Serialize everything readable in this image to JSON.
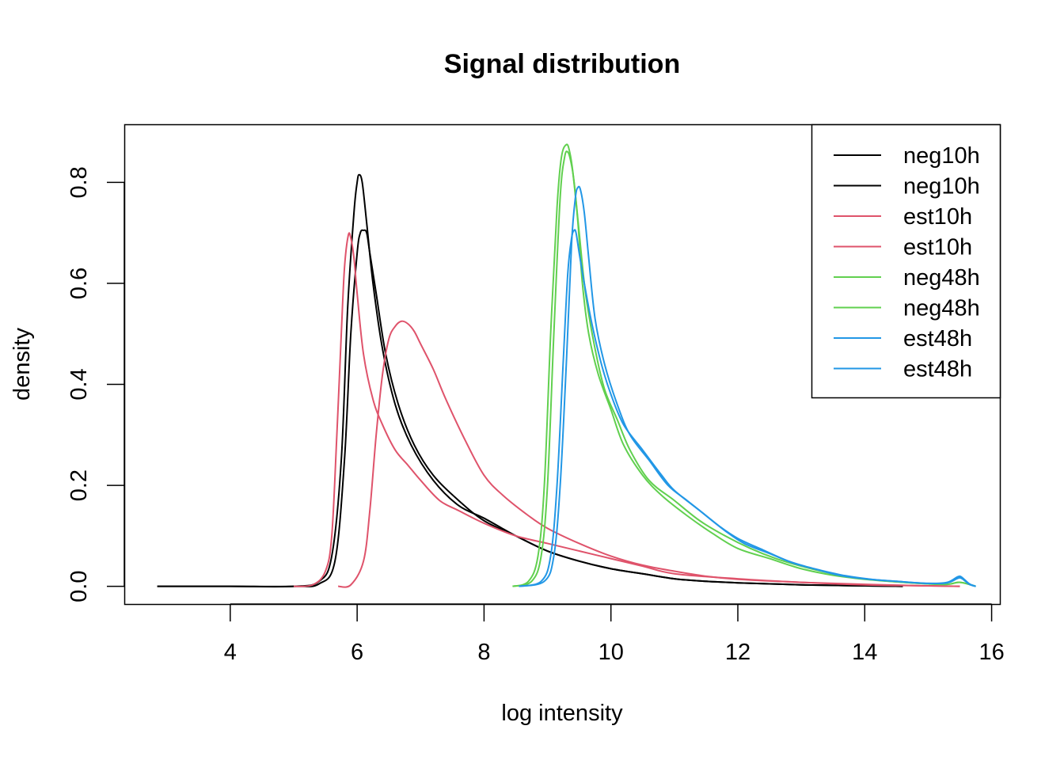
{
  "chart_data": {
    "type": "line",
    "title": "Signal distribution",
    "xlabel": "log intensity",
    "ylabel": "density",
    "xlim": [
      2.33,
      16.13
    ],
    "ylim": [
      -0.035,
      0.915
    ],
    "xticks": [
      4,
      6,
      8,
      10,
      12,
      14,
      16
    ],
    "yticks": [
      0.0,
      0.2,
      0.4,
      0.6,
      0.8
    ],
    "grid": false,
    "legend_position": "top-right",
    "colors": {
      "black": "#000000",
      "red": "#DF536B",
      "green": "#61D04F",
      "blue": "#2297E6"
    },
    "series": [
      {
        "name": "neg10h",
        "color": "#000000",
        "x": [
          2.85,
          4.0,
          5.0,
          5.4,
          5.6,
          5.75,
          5.85,
          5.95,
          6.0,
          6.03,
          6.08,
          6.15,
          6.25,
          6.4,
          6.6,
          6.85,
          7.2,
          7.6,
          8.0,
          8.5,
          9.0,
          9.5,
          10.0,
          10.5,
          11.0,
          11.5,
          12.0,
          12.5,
          13.0,
          13.5,
          14.0,
          14.6
        ],
        "y": [
          0.0,
          0.0,
          0.0,
          0.01,
          0.06,
          0.25,
          0.55,
          0.74,
          0.8,
          0.815,
          0.8,
          0.72,
          0.6,
          0.47,
          0.36,
          0.28,
          0.21,
          0.16,
          0.135,
          0.1,
          0.07,
          0.05,
          0.035,
          0.025,
          0.015,
          0.01,
          0.007,
          0.005,
          0.003,
          0.002,
          0.001,
          0.0
        ]
      },
      {
        "name": "neg10h",
        "color": "#000000",
        "x": [
          2.85,
          4.0,
          5.0,
          5.4,
          5.65,
          5.8,
          5.9,
          6.0,
          6.05,
          6.1,
          6.15,
          6.2,
          6.3,
          6.45,
          6.65,
          6.9,
          7.2,
          7.6,
          8.0,
          8.5,
          9.0,
          9.5,
          10.0,
          10.5,
          11.0,
          11.5,
          12.0,
          12.5,
          13.0,
          13.5,
          14.0,
          14.6
        ],
        "y": [
          0.0,
          0.0,
          0.0,
          0.005,
          0.05,
          0.25,
          0.5,
          0.66,
          0.7,
          0.705,
          0.7,
          0.66,
          0.58,
          0.46,
          0.36,
          0.28,
          0.22,
          0.17,
          0.13,
          0.1,
          0.07,
          0.05,
          0.035,
          0.025,
          0.015,
          0.01,
          0.007,
          0.005,
          0.003,
          0.002,
          0.001,
          0.0
        ]
      },
      {
        "name": "est10h",
        "color": "#DF536B",
        "x": [
          5.0,
          5.3,
          5.5,
          5.6,
          5.68,
          5.75,
          5.8,
          5.86,
          5.9,
          5.95,
          6.0,
          6.1,
          6.25,
          6.4,
          6.6,
          6.8,
          7.0,
          7.3,
          7.6,
          8.0,
          8.5,
          9.0,
          9.5,
          10.0,
          10.5,
          11.0,
          12.0,
          13.0,
          14.0,
          15.0,
          15.5
        ],
        "y": [
          0.0,
          0.003,
          0.03,
          0.1,
          0.3,
          0.5,
          0.63,
          0.695,
          0.69,
          0.65,
          0.58,
          0.46,
          0.37,
          0.32,
          0.27,
          0.24,
          0.21,
          0.17,
          0.15,
          0.125,
          0.1,
          0.085,
          0.07,
          0.055,
          0.04,
          0.025,
          0.015,
          0.008,
          0.003,
          0.001,
          0.0
        ]
      },
      {
        "name": "est10h",
        "color": "#DF536B",
        "x": [
          5.7,
          5.9,
          6.1,
          6.2,
          6.3,
          6.4,
          6.5,
          6.6,
          6.7,
          6.8,
          6.9,
          7.0,
          7.2,
          7.4,
          7.7,
          8.0,
          8.3,
          8.7,
          9.0,
          9.5,
          10.0,
          10.5,
          11.0,
          11.5,
          12.0,
          13.0,
          14.0,
          15.0,
          15.5
        ],
        "y": [
          0.0,
          0.003,
          0.05,
          0.15,
          0.3,
          0.42,
          0.49,
          0.515,
          0.525,
          0.52,
          0.505,
          0.48,
          0.43,
          0.37,
          0.29,
          0.22,
          0.18,
          0.14,
          0.115,
          0.085,
          0.06,
          0.042,
          0.03,
          0.02,
          0.014,
          0.008,
          0.004,
          0.001,
          0.0
        ]
      },
      {
        "name": "neg48h",
        "color": "#61D04F",
        "x": [
          8.45,
          8.7,
          8.85,
          8.95,
          9.05,
          9.15,
          9.22,
          9.3,
          9.35,
          9.4,
          9.48,
          9.55,
          9.65,
          9.8,
          10.0,
          10.2,
          10.5,
          10.8,
          11.2,
          11.6,
          12.0,
          12.5,
          13.0,
          13.5,
          14.0,
          14.5,
          15.0,
          15.3,
          15.5,
          15.7,
          15.75
        ],
        "y": [
          0.0,
          0.01,
          0.06,
          0.2,
          0.5,
          0.75,
          0.85,
          0.875,
          0.86,
          0.82,
          0.72,
          0.6,
          0.5,
          0.42,
          0.35,
          0.28,
          0.22,
          0.18,
          0.14,
          0.105,
          0.075,
          0.055,
          0.035,
          0.022,
          0.014,
          0.009,
          0.005,
          0.004,
          0.008,
          0.002,
          0.0
        ]
      },
      {
        "name": "neg48h",
        "color": "#61D04F",
        "x": [
          8.45,
          8.75,
          8.9,
          9.0,
          9.1,
          9.2,
          9.27,
          9.32,
          9.37,
          9.42,
          9.5,
          9.6,
          9.75,
          9.9,
          10.1,
          10.3,
          10.6,
          11.0,
          11.4,
          11.8,
          12.2,
          12.6,
          13.0,
          13.5,
          14.0,
          14.5,
          15.0,
          15.3,
          15.5,
          15.7,
          15.75
        ],
        "y": [
          0.0,
          0.01,
          0.06,
          0.2,
          0.5,
          0.77,
          0.85,
          0.86,
          0.84,
          0.8,
          0.7,
          0.58,
          0.47,
          0.39,
          0.33,
          0.27,
          0.21,
          0.17,
          0.13,
          0.1,
          0.075,
          0.055,
          0.04,
          0.025,
          0.015,
          0.009,
          0.005,
          0.004,
          0.008,
          0.002,
          0.0
        ]
      },
      {
        "name": "est48h",
        "color": "#2297E6",
        "x": [
          8.55,
          8.9,
          9.05,
          9.15,
          9.25,
          9.32,
          9.38,
          9.42,
          9.45,
          9.5,
          9.58,
          9.7,
          9.85,
          10.0,
          10.2,
          10.5,
          10.8,
          11.0,
          11.4,
          11.7,
          12.0,
          12.4,
          12.8,
          13.2,
          13.6,
          14.0,
          14.5,
          15.0,
          15.3,
          15.45,
          15.5,
          15.55,
          15.65,
          15.75
        ],
        "y": [
          0.0,
          0.01,
          0.06,
          0.2,
          0.45,
          0.62,
          0.69,
          0.705,
          0.7,
          0.66,
          0.6,
          0.52,
          0.44,
          0.38,
          0.32,
          0.27,
          0.22,
          0.19,
          0.15,
          0.12,
          0.095,
          0.072,
          0.05,
          0.035,
          0.022,
          0.015,
          0.01,
          0.006,
          0.007,
          0.015,
          0.017,
          0.014,
          0.004,
          0.0
        ]
      },
      {
        "name": "est48h",
        "color": "#2297E6",
        "x": [
          8.55,
          8.95,
          9.1,
          9.2,
          9.3,
          9.38,
          9.44,
          9.48,
          9.52,
          9.58,
          9.65,
          9.75,
          9.9,
          10.1,
          10.3,
          10.6,
          10.9,
          11.2,
          11.5,
          11.8,
          12.1,
          12.5,
          12.9,
          13.3,
          13.7,
          14.1,
          14.5,
          15.0,
          15.3,
          15.45,
          15.5,
          15.55,
          15.65,
          15.75
        ],
        "y": [
          0.0,
          0.01,
          0.06,
          0.2,
          0.45,
          0.68,
          0.77,
          0.79,
          0.785,
          0.74,
          0.65,
          0.53,
          0.44,
          0.36,
          0.3,
          0.25,
          0.2,
          0.17,
          0.14,
          0.11,
          0.085,
          0.065,
          0.045,
          0.032,
          0.021,
          0.014,
          0.01,
          0.006,
          0.008,
          0.018,
          0.02,
          0.016,
          0.005,
          0.0
        ]
      }
    ]
  }
}
